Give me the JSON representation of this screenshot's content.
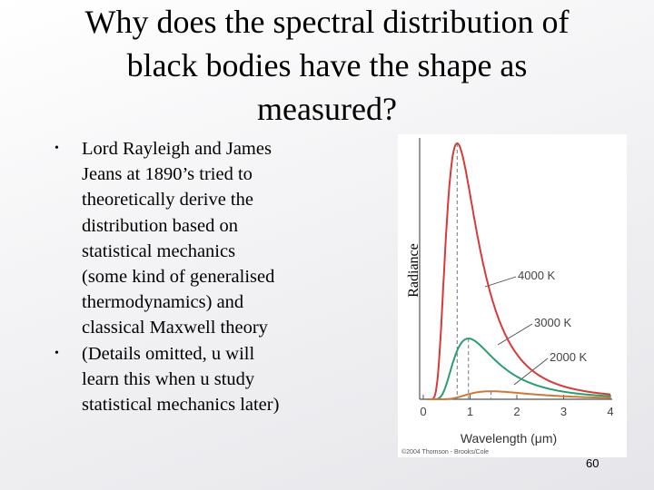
{
  "title_lines": [
    "Why does the spectral distribution of",
    "black bodies have the shape as",
    "measured?"
  ],
  "bullets": [
    {
      "lines": [
        "Lord Rayleigh and James",
        "Jeans at 1890’s tried to",
        "theoretically derive the",
        "distribution based on",
        "statistical mechanics",
        "(some kind of generalised",
        "thermodynamics) and",
        "classical Maxwell theory"
      ]
    },
    {
      "lines": [
        "(Details omitted, u will",
        "learn this when u study",
        "statistical mechanics later)"
      ]
    }
  ],
  "figure": {
    "y_label": "Radiance",
    "x_label": "Wavelength (μm)",
    "x_ticks": [
      "0",
      "1",
      "2",
      "3",
      "4"
    ],
    "curve_labels": [
      "4000 K",
      "3000 K",
      "2000 K"
    ],
    "credit": "©2004 Thomson - Brooks/Cole"
  },
  "page_number": "60"
}
